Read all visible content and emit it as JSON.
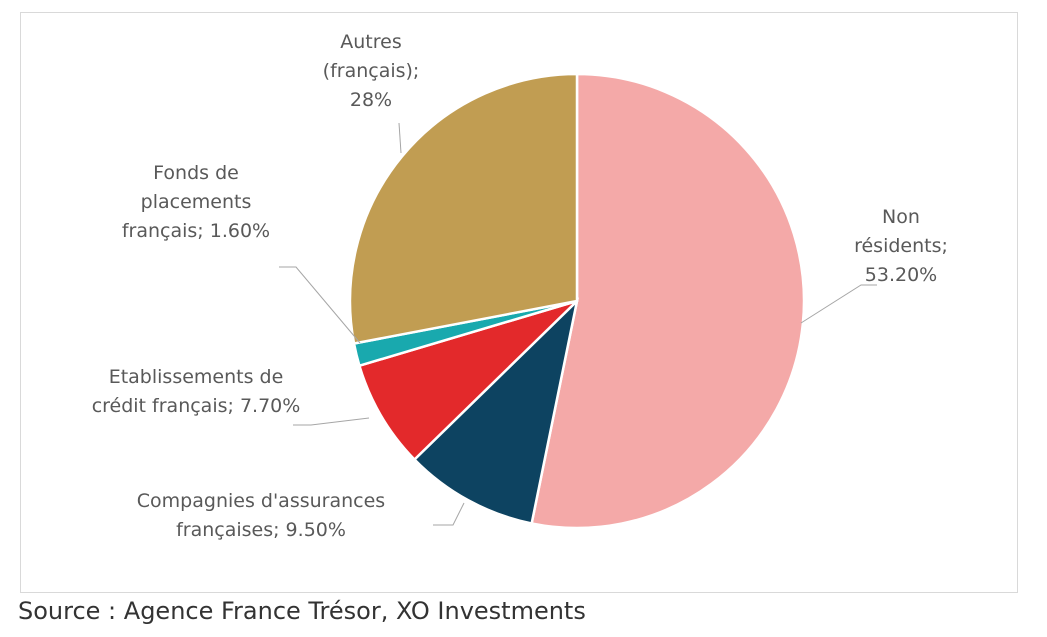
{
  "chart_data": {
    "type": "pie",
    "slices": [
      {
        "label": "Non résidents; 53.20%",
        "lines": [
          "Non",
          "résidents;",
          "53.20%"
        ],
        "value": 53.2,
        "color": "#f4a9a8"
      },
      {
        "label": "Compagnies d'assurances françaises; 9.50%",
        "lines": [
          "Compagnies d'assurances",
          "françaises; 9.50%"
        ],
        "value": 9.5,
        "color": "#0d4361"
      },
      {
        "label": "Etablissements de crédit français; 7.70%",
        "lines": [
          "Etablissements de",
          "crédit français; 7.70%"
        ],
        "value": 7.7,
        "color": "#e3292b"
      },
      {
        "label": "Fonds de placements français; 1.60%",
        "lines": [
          "Fonds de",
          "placements",
          "français; 1.60%"
        ],
        "value": 1.6,
        "color": "#19a9ae"
      },
      {
        "label": "Autres (français); 28%",
        "lines": [
          "Autres",
          "(français);",
          "28%"
        ],
        "value": 28,
        "color": "#c19d52"
      }
    ],
    "start_angle_deg": 0,
    "direction": "clockwise"
  },
  "source": "Source : Agence France Trésor, XO Investments"
}
